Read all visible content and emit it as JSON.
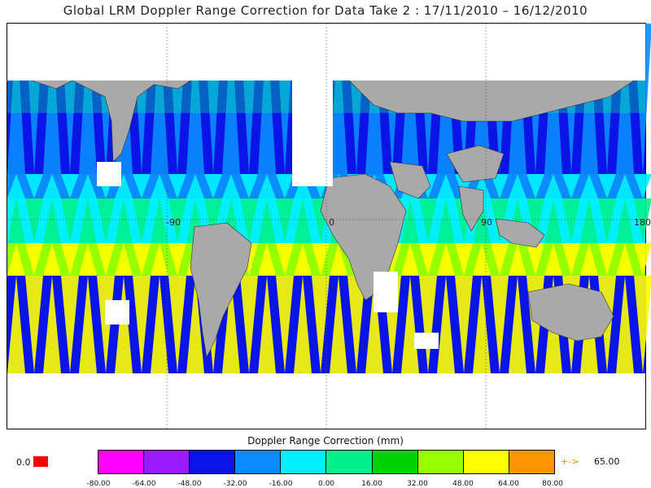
{
  "title": "Global LRM Doppler Range Correction for Data Take 2 : 17/11/2010 – 16/12/2010",
  "map": {
    "grid_labels": [
      "-90",
      "0",
      "90",
      "180"
    ]
  },
  "colorbar": {
    "title": "Doppler Range Correction (mm)",
    "colors": [
      "#ff00ff",
      "#9a1aff",
      "#0a14e6",
      "#0a8cff",
      "#00f0ff",
      "#00f08c",
      "#00d200",
      "#96ff00",
      "#ffff00",
      "#ff9600"
    ],
    "ticks": [
      "-80.00",
      "-64.00",
      "-48.00",
      "-32.00",
      "-16.00",
      "0.00",
      "16.00",
      "32.00",
      "48.00",
      "64.00",
      "80.00"
    ],
    "zero_value": "0.0",
    "zero_color": "#ff0000",
    "overflow_arrow": "+->",
    "overflow_value": "65.00"
  },
  "colors": {
    "land": "#a9a9a9",
    "nodata": "#ffffff"
  }
}
